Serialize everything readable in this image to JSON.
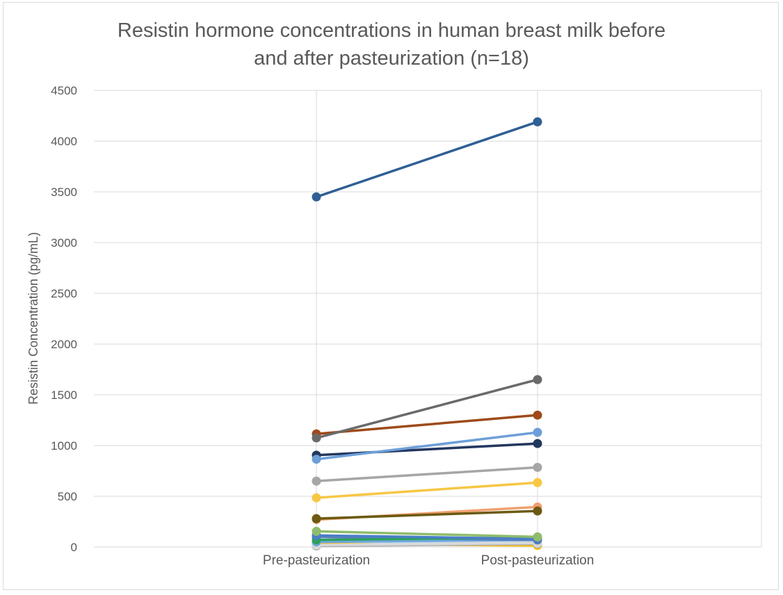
{
  "chart_data": {
    "type": "line",
    "title_lines": [
      "Resistin hormone concentrations in human breast milk before",
      "and after pasteurization (n=18)"
    ],
    "xlabel": "",
    "ylabel": "Resistin Concentration (pg/mL)",
    "categories": [
      "Pre-pasteurization",
      "Post-pasteurization"
    ],
    "ylim": [
      0,
      4500
    ],
    "yticks": [
      0,
      500,
      1000,
      1500,
      2000,
      2500,
      3000,
      3500,
      4000,
      4500
    ],
    "grid": true,
    "legend": "none",
    "series": [
      {
        "color": "#2f5f95",
        "values": [
          3450,
          4190
        ]
      },
      {
        "color": "#6a6a6a",
        "values": [
          1075,
          1650
        ]
      },
      {
        "color": "#9e4a1a",
        "values": [
          1115,
          1300
        ]
      },
      {
        "color": "#6d9fd8",
        "values": [
          865,
          1130
        ]
      },
      {
        "color": "#22375f",
        "values": [
          905,
          1020
        ]
      },
      {
        "color": "#a6a6a6",
        "values": [
          650,
          785
        ]
      },
      {
        "color": "#f7c744",
        "values": [
          485,
          635
        ]
      },
      {
        "color": "#6b5a12",
        "values": [
          280,
          355
        ]
      },
      {
        "color": "#f0a070",
        "values": [
          270,
          395
        ]
      },
      {
        "color": "#8fbc6c",
        "values": [
          155,
          100
        ]
      },
      {
        "color": "#4a7ec8",
        "values": [
          115,
          80
        ]
      },
      {
        "color": "#2e9f5f",
        "values": [
          70,
          95
        ]
      },
      {
        "color": "#5b7db8",
        "values": [
          100,
          70
        ]
      },
      {
        "color": "#6fa8dc",
        "values": [
          50,
          70
        ]
      },
      {
        "color": "#d9d9d9",
        "values": [
          20,
          40
        ]
      },
      {
        "color": "#b0b0b0",
        "values": [
          10,
          30
        ]
      },
      {
        "color": "#ffc000",
        "values": [
          30,
          15
        ]
      },
      {
        "color": "#bdd7ee",
        "values": [
          25,
          45
        ]
      }
    ]
  }
}
